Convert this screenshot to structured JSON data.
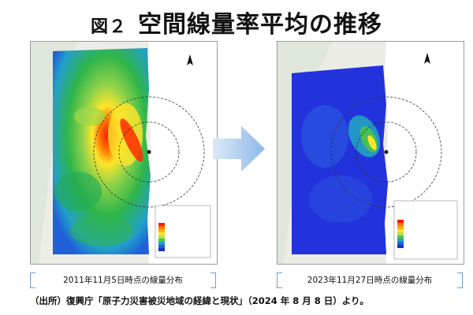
{
  "title": {
    "figure": "図２",
    "text": "空間線量率平均の推移"
  },
  "maps": {
    "left": {
      "caption": "2011年11月5日時点の線量分布"
    },
    "right": {
      "caption": "2023年11月27日時点の線量分布"
    }
  },
  "source": "（出所）復興庁「原子力災害被災地域の経緯と現状」（2024 年 8 月 8 日）より。",
  "colors": {
    "blue_low": "#2233dd",
    "high": "#ff2200",
    "mid": "#ffdd22",
    "green": "#33bb44",
    "arrow": "#8fb8e8"
  }
}
